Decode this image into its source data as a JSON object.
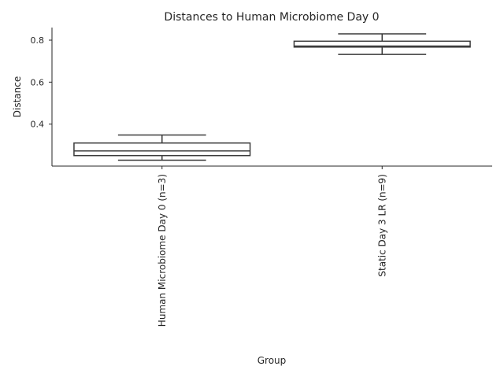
{
  "chart_data": {
    "type": "box",
    "title": "Distances to Human Microbiome Day 0",
    "xlabel": "Group",
    "ylabel": "Distance",
    "ylim": [
      0.2,
      0.86
    ],
    "yticks": [
      0.4,
      0.6,
      0.8
    ],
    "ytick_labels": [
      "0.4",
      "0.6",
      "0.8"
    ],
    "grid": false,
    "categories": [
      "Human Microbiome Day 0 (n=3)",
      "Static Day 3 LR (n=9)"
    ],
    "boxes": [
      {
        "category": "Human Microbiome Day 0 (n=3)",
        "min": 0.228,
        "q1": 0.25,
        "median": 0.272,
        "q3": 0.31,
        "max": 0.348
      },
      {
        "category": "Static Day 3 LR (n=9)",
        "min": 0.732,
        "q1": 0.767,
        "median": 0.772,
        "q3": 0.795,
        "max": 0.83
      }
    ],
    "colors": {
      "box": "#ffffff",
      "edge": "#3a3a3a",
      "axis": "#262626",
      "text": "#262626"
    }
  }
}
